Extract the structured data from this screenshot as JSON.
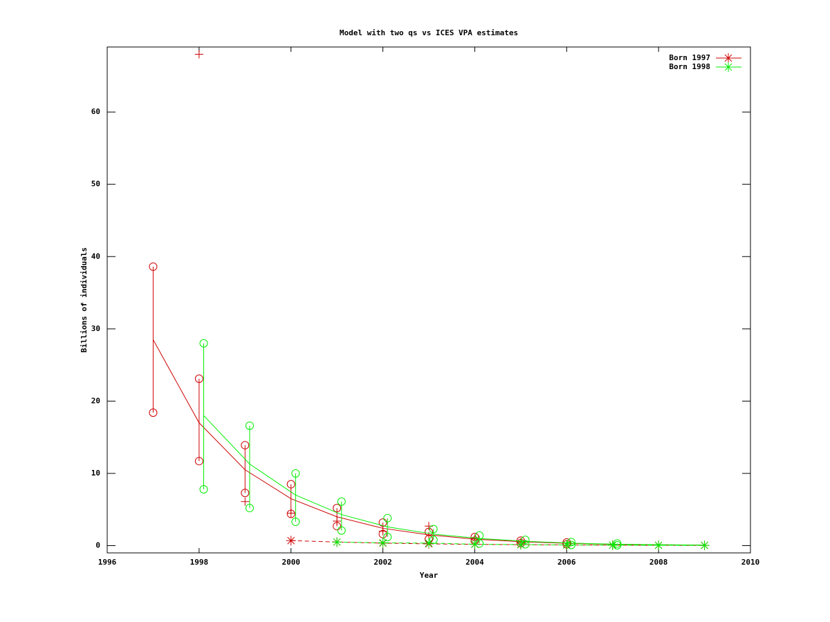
{
  "chart_data": {
    "type": "line",
    "title": "Model with two qs vs ICES VPA estimates",
    "xlabel": "Year",
    "ylabel": "Billions of individuals",
    "xlim": [
      1996,
      2010
    ],
    "xticks": [
      1996,
      1998,
      2000,
      2002,
      2004,
      2006,
      2008,
      2010
    ],
    "ylim": [
      -1,
      69
    ],
    "yticks": [
      0,
      10,
      20,
      30,
      40,
      50,
      60
    ],
    "legend": "top-right",
    "series": [
      {
        "name": "Born 1997",
        "color": "#cc0000",
        "model": {
          "x": [
            1997,
            1998,
            1999,
            2000,
            2001,
            2002,
            2003,
            2004,
            2005,
            2006,
            2007,
            2008,
            2009
          ],
          "values": [
            28.5,
            17,
            10.5,
            6.5,
            4,
            2.4,
            1.5,
            0.9,
            0.55,
            0.33,
            0.2,
            0.12,
            0.07
          ]
        },
        "range": {
          "x": [
            1997,
            1998,
            1999,
            2000,
            2001,
            2002,
            2003,
            2004,
            2005,
            2006
          ],
          "low": [
            18.4,
            11.7,
            7.3,
            4.4,
            2.7,
            1.6,
            0.9,
            0.7,
            0.35,
            0.2
          ],
          "high": [
            38.6,
            23.1,
            13.9,
            8.5,
            5.2,
            3.2,
            1.9,
            1.2,
            0.7,
            0.45
          ]
        },
        "vpa": {
          "x": [
            1998,
            1999,
            2000,
            2001,
            2002,
            2003,
            2004,
            2005
          ],
          "values": [
            68,
            6.1,
            4.5,
            3.4,
            2.0,
            2.7,
            1.0,
            0.5
          ]
        },
        "survey": {
          "x": [
            2000,
            2001,
            2002,
            2003,
            2004,
            2005,
            2006,
            2007,
            2008,
            2009
          ],
          "values": [
            0.7,
            0.5,
            0.35,
            0.25,
            0.18,
            0.13,
            0.1,
            0.07,
            0.05,
            0.04
          ]
        }
      },
      {
        "name": "Born 1998",
        "color": "#00ee00",
        "model": {
          "x": [
            1998.1,
            1999.1,
            2000.1,
            2001.1,
            2002.1,
            2003.1,
            2004.1,
            2005.1,
            2006.1,
            2007.1,
            2008.1,
            2009
          ],
          "values": [
            18,
            11.3,
            7,
            4.3,
            2.6,
            1.6,
            1.0,
            0.6,
            0.35,
            0.2,
            0.12,
            0.08
          ]
        },
        "range": {
          "x": [
            1998.1,
            1999.1,
            2000.1,
            2001.1,
            2002.1,
            2003.1,
            2004.1,
            2005.1,
            2006.1,
            2007.1
          ],
          "low": [
            7.8,
            5.2,
            3.3,
            2.1,
            1.2,
            0.8,
            0.3,
            0.2,
            0.1,
            0.05
          ],
          "high": [
            28,
            16.6,
            10,
            6.1,
            3.8,
            2.3,
            1.4,
            0.8,
            0.5,
            0.3
          ]
        },
        "vpa": {
          "x": [],
          "values": []
        },
        "survey": {
          "x": [
            2001,
            2002,
            2003,
            2004,
            2005,
            2006,
            2007,
            2008,
            2009
          ],
          "values": [
            0.5,
            0.4,
            0.35,
            0.2,
            0.15,
            0.1,
            0.07,
            0.05,
            0.04
          ]
        }
      }
    ]
  }
}
